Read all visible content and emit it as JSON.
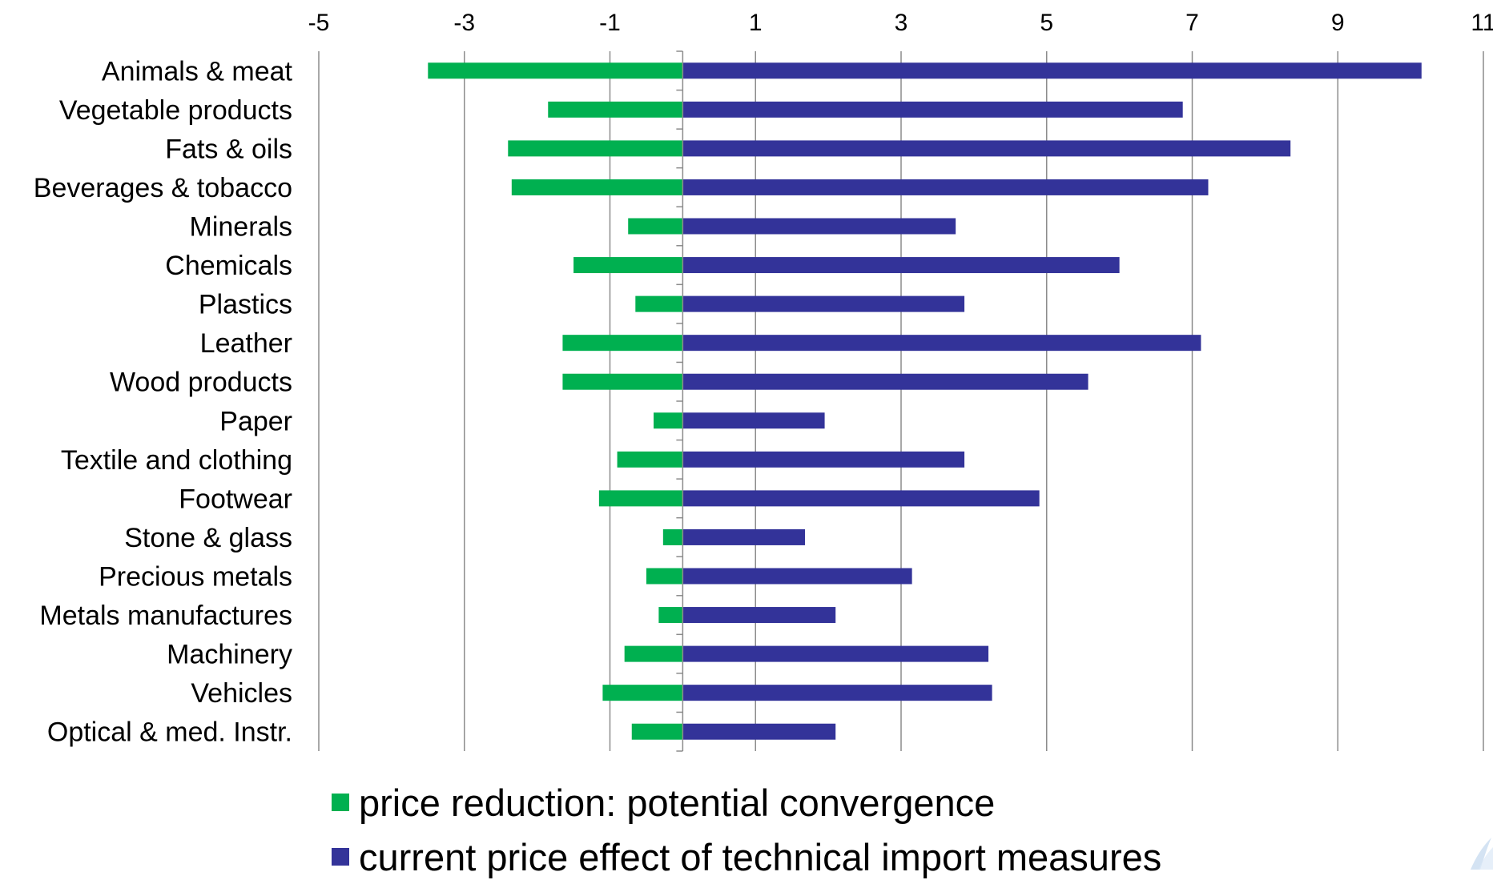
{
  "chart_data": {
    "type": "bar",
    "orientation": "horizontal",
    "categories": [
      "Animals & meat",
      "Vegetable products",
      "Fats & oils",
      "Beverages & tobacco",
      "Minerals",
      "Chemicals",
      "Plastics",
      "Leather",
      "Wood products",
      "Paper",
      "Textile and clothing",
      "Footwear",
      "Stone & glass",
      "Precious metals",
      "Metals manufactures",
      "Machinery",
      "Vehicles",
      "Optical & med. Instr."
    ],
    "series": [
      {
        "name": "price reduction: potential convergence",
        "color": "#00b050",
        "values": [
          -3.5,
          -1.85,
          -2.4,
          -2.35,
          -0.75,
          -1.5,
          -0.65,
          -1.65,
          -1.65,
          -0.4,
          -0.9,
          -1.15,
          -0.27,
          -0.5,
          -0.33,
          -0.8,
          -1.1,
          -0.7
        ]
      },
      {
        "name": "current price effect of technical import measures",
        "color": "#333399",
        "values": [
          10.15,
          6.87,
          8.35,
          7.22,
          3.75,
          6.0,
          3.87,
          7.12,
          5.57,
          1.95,
          3.87,
          4.9,
          1.68,
          3.15,
          2.1,
          4.2,
          4.25,
          2.1
        ]
      }
    ],
    "xlim": [
      -5,
      11
    ],
    "xticks": [
      -5,
      -3,
      -1,
      1,
      3,
      5,
      7,
      9,
      11
    ],
    "xtick_labels": [
      "-5",
      "-3",
      "-1",
      "1",
      "3",
      "5",
      "7",
      "9",
      "11"
    ],
    "xaxis_position": "top",
    "grid": true,
    "legend": "bottom"
  }
}
